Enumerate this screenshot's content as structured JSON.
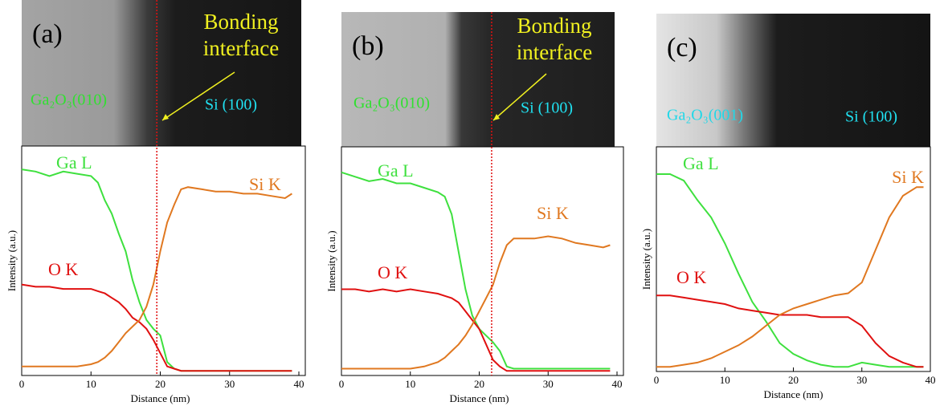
{
  "chart_data": [
    {
      "type": "line",
      "panel_label": "(a)",
      "interface_label": [
        "Bonding",
        "interface"
      ],
      "left_material": "Ga₂O₃(010)",
      "right_material": "Si (100)",
      "x_label": "Distance (nm)",
      "y_label": "Intensity (a.u.)",
      "xlim": [
        0,
        40
      ],
      "xticks": [
        0,
        10,
        20,
        30,
        40
      ],
      "ylim": [
        0,
        100
      ],
      "interface_x": 19.5,
      "x": [
        0,
        2,
        4,
        6,
        8,
        10,
        11,
        12,
        13,
        14,
        15,
        16,
        17,
        18,
        19,
        20,
        21,
        22,
        23,
        24,
        26,
        28,
        30,
        32,
        34,
        36,
        38,
        39
      ],
      "series": [
        {
          "name": "Ga L",
          "color": "#3ee03e",
          "values": [
            92,
            91,
            89,
            91,
            90,
            89,
            86,
            78,
            72,
            63,
            55,
            42,
            32,
            24,
            20,
            17,
            5,
            2,
            1,
            1,
            1,
            1,
            1,
            1,
            1,
            1,
            1,
            1
          ]
        },
        {
          "name": "O K",
          "color": "#e01010",
          "values": [
            40,
            39,
            39,
            38,
            38,
            38,
            37,
            36,
            34,
            32,
            29,
            25,
            23,
            20,
            15,
            9,
            3,
            2,
            1,
            1,
            1,
            1,
            1,
            1,
            1,
            1,
            1,
            1
          ]
        },
        {
          "name": "Si K",
          "color": "#e07820",
          "values": [
            3,
            3,
            3,
            3,
            3,
            4,
            5,
            7,
            10,
            14,
            18,
            21,
            24,
            30,
            40,
            55,
            68,
            76,
            83,
            84,
            83,
            82,
            82,
            81,
            81,
            80,
            79,
            81
          ]
        }
      ]
    },
    {
      "type": "line",
      "panel_label": "(b)",
      "interface_label": [
        "Bonding",
        "interface"
      ],
      "left_material": "Ga₂O₃(010)",
      "right_material": "Si (100)",
      "x_label": "Distance (nm)",
      "y_label": "Intensity (a.u.)",
      "xlim": [
        0,
        40
      ],
      "xticks": [
        0,
        10,
        20,
        30,
        40
      ],
      "ylim": [
        0,
        100
      ],
      "interface_x": 21.8,
      "x": [
        0,
        2,
        4,
        6,
        8,
        10,
        12,
        14,
        15,
        16,
        17,
        18,
        19,
        20,
        21,
        22,
        23,
        24,
        25,
        26,
        28,
        30,
        32,
        34,
        36,
        38,
        39
      ],
      "series": [
        {
          "name": "Ga L",
          "color": "#3ee03e",
          "values": [
            91,
            89,
            87,
            88,
            86,
            86,
            84,
            82,
            80,
            72,
            55,
            38,
            26,
            20,
            17,
            14,
            10,
            3,
            2,
            2,
            2,
            2,
            2,
            2,
            2,
            2,
            2
          ]
        },
        {
          "name": "O K",
          "color": "#e01010",
          "values": [
            38,
            38,
            37,
            38,
            37,
            38,
            37,
            36,
            35,
            34,
            32,
            28,
            24,
            20,
            13,
            6,
            3,
            1,
            1,
            1,
            1,
            1,
            1,
            1,
            1,
            1,
            1
          ]
        },
        {
          "name": "Si K",
          "color": "#e07820",
          "values": [
            2,
            2,
            2,
            2,
            2,
            2,
            3,
            5,
            7,
            10,
            13,
            17,
            22,
            28,
            34,
            40,
            50,
            58,
            61,
            61,
            61,
            62,
            61,
            59,
            58,
            57,
            58
          ]
        }
      ]
    },
    {
      "type": "line",
      "panel_label": "(c)",
      "left_material": "Ga₂O₃(001)",
      "right_material": "Si (100)",
      "x_label": "Distance (nm)",
      "y_label": "Intensity (a.u.)",
      "xlim": [
        0,
        40
      ],
      "xticks": [
        0,
        10,
        20,
        30,
        40
      ],
      "ylim": [
        0,
        100
      ],
      "x": [
        0,
        2,
        4,
        6,
        8,
        10,
        12,
        14,
        16,
        18,
        20,
        22,
        24,
        26,
        28,
        30,
        32,
        34,
        36,
        38,
        39
      ],
      "series": [
        {
          "name": "Ga L",
          "color": "#3ee03e",
          "values": [
            90,
            90,
            87,
            78,
            70,
            58,
            44,
            31,
            22,
            12,
            7,
            4,
            2,
            1,
            1,
            3,
            2,
            1,
            1,
            1,
            1
          ]
        },
        {
          "name": "O K",
          "color": "#e01010",
          "values": [
            34,
            34,
            33,
            32,
            31,
            30,
            28,
            27,
            26,
            25,
            25,
            25,
            24,
            24,
            24,
            20,
            12,
            6,
            3,
            1,
            1
          ]
        },
        {
          "name": "Si K",
          "color": "#e07820",
          "values": [
            1,
            1,
            2,
            3,
            5,
            8,
            11,
            15,
            20,
            25,
            28,
            30,
            32,
            34,
            35,
            40,
            55,
            70,
            80,
            84,
            84
          ]
        }
      ]
    }
  ]
}
